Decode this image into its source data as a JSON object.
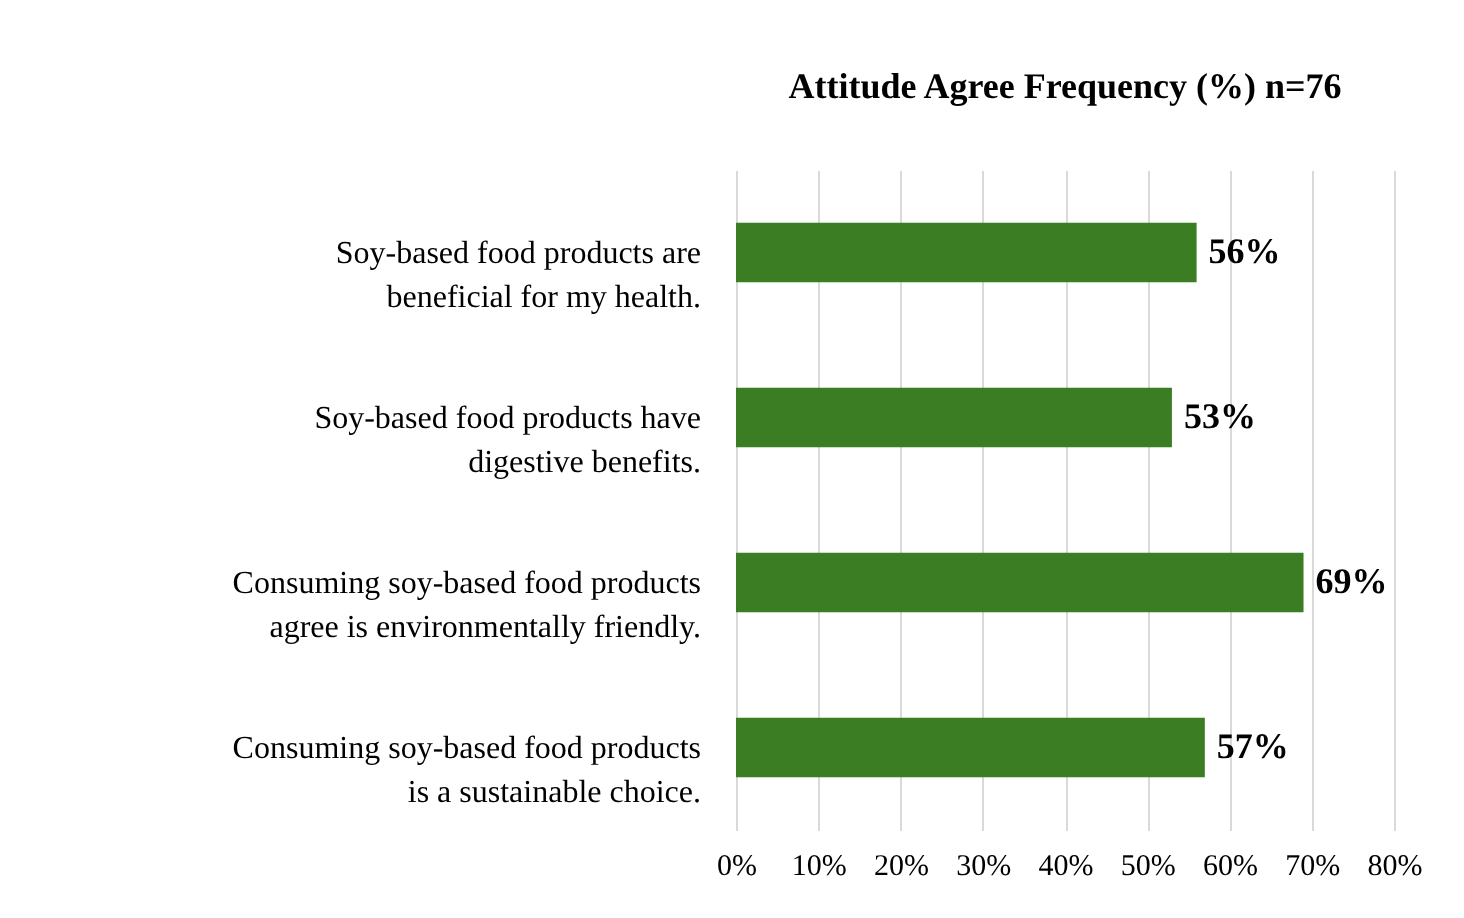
{
  "chart_data": {
    "type": "bar",
    "orientation": "horizontal",
    "title": "Attitude Agree Frequency (%) n=76",
    "categories": [
      "Soy-based food products are beneficial for my health.",
      "Soy-based food products have digestive benefits.",
      "Consuming soy-based food products agree is environmentally friendly.",
      "Consuming soy-based food products is a sustainable choice."
    ],
    "values": [
      56,
      53,
      69,
      57
    ],
    "value_labels": [
      "56%",
      "53%",
      "69%",
      "57%"
    ],
    "color": "#3b7d23",
    "xlim": [
      0,
      80
    ],
    "xticks": [
      {
        "value": 0,
        "label": "0%"
      },
      {
        "value": 10,
        "label": "10%"
      },
      {
        "value": 20,
        "label": "20%"
      },
      {
        "value": 30,
        "label": "30%"
      },
      {
        "value": 40,
        "label": "40%"
      },
      {
        "value": 50,
        "label": "50%"
      },
      {
        "value": 60,
        "label": "60%"
      },
      {
        "value": 70,
        "label": "70%"
      },
      {
        "value": 80,
        "label": "80%"
      }
    ],
    "grid": "x"
  }
}
